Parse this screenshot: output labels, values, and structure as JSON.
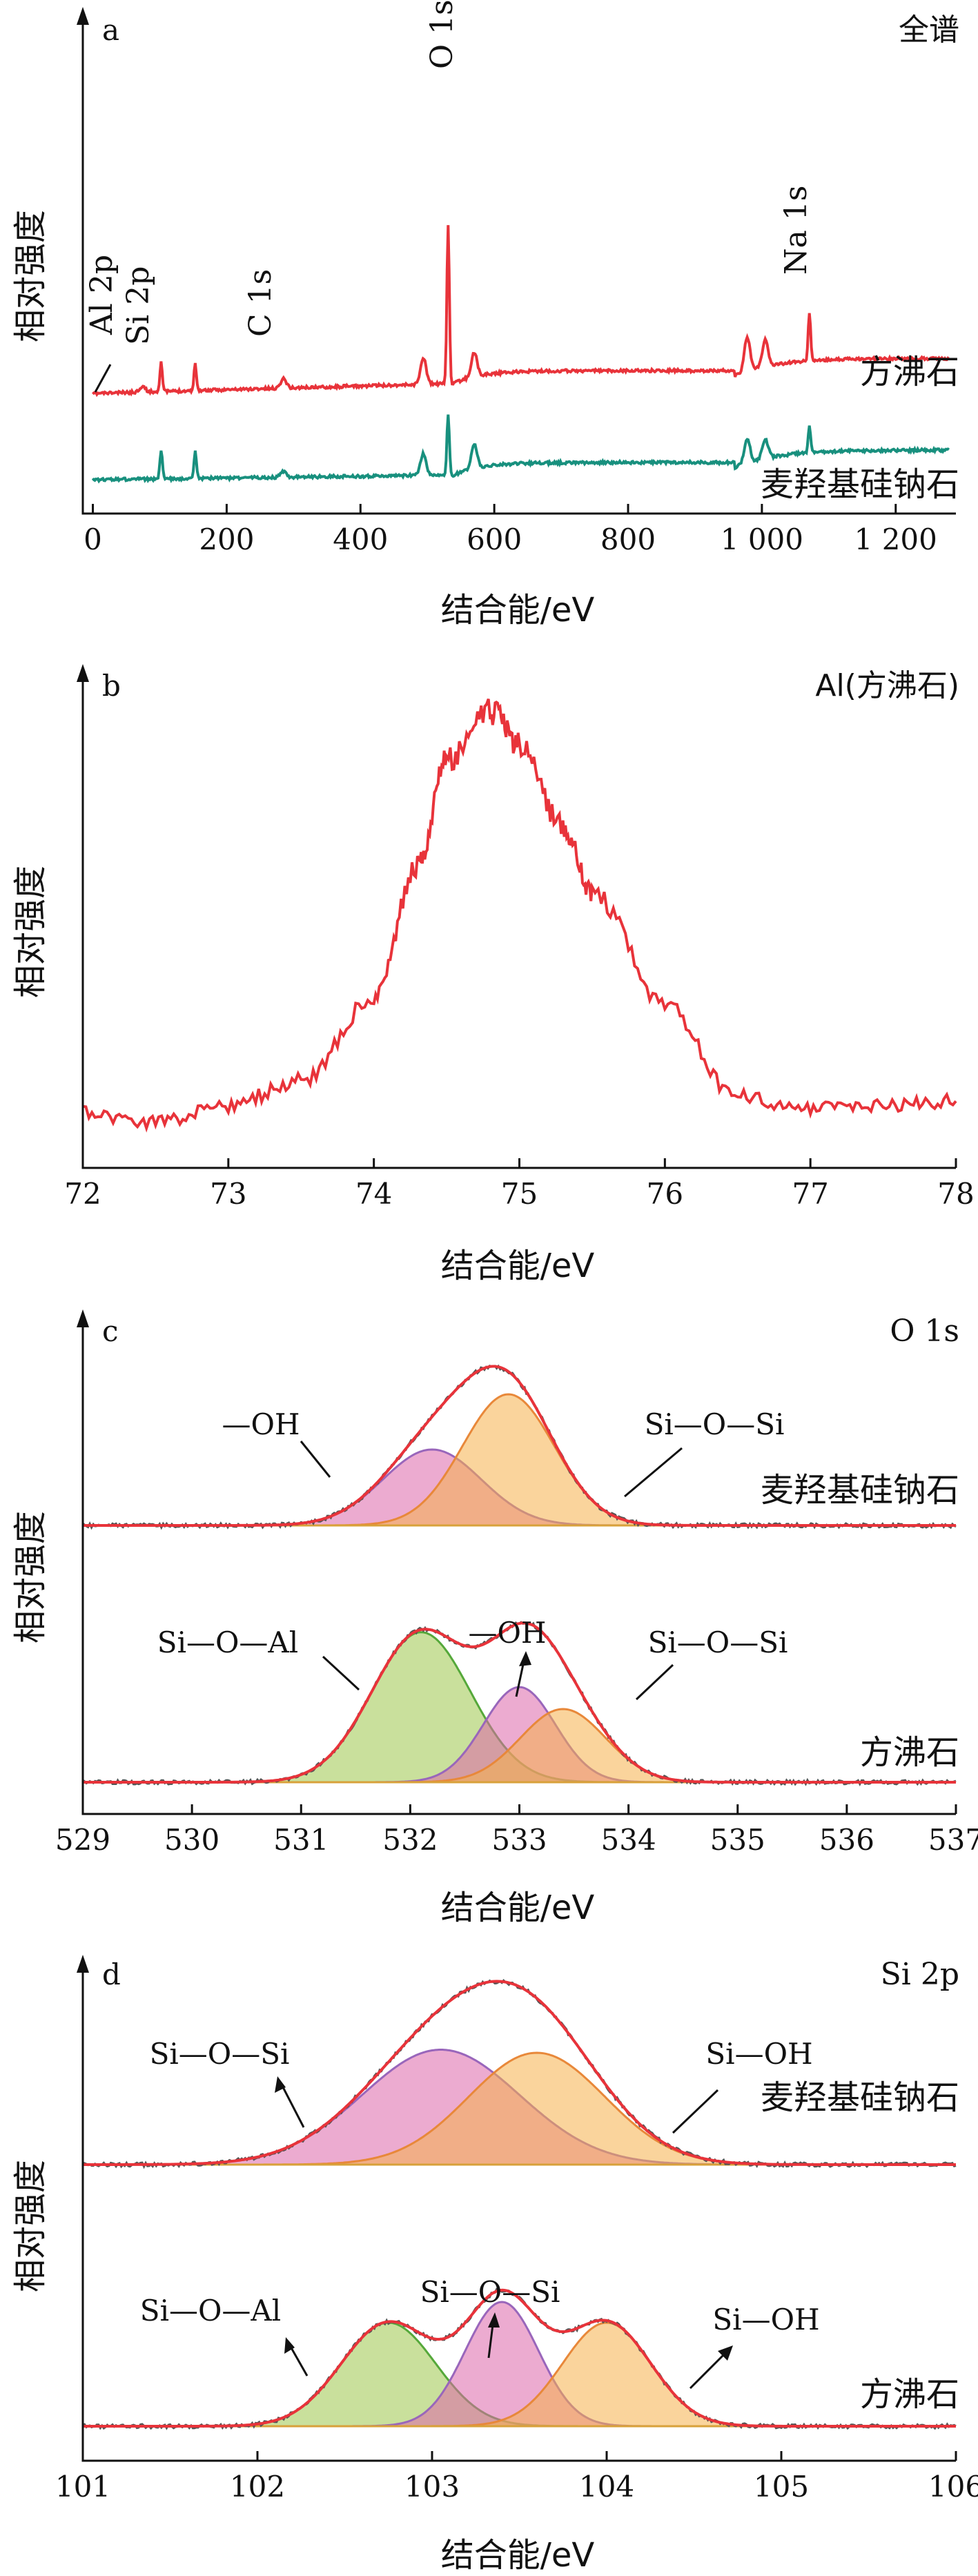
{
  "chart_data": [
    {
      "type": "line",
      "panel_letter": "a",
      "title": "全谱",
      "ylabel": "相对强度",
      "xlabel": "结合能/eV",
      "xlim": [
        0,
        1300
      ],
      "x_ticks": [
        "0",
        "200",
        "400",
        "600",
        "800",
        "1 000",
        "1 200"
      ],
      "x_tick_values": [
        0,
        200,
        400,
        600,
        800,
        1000,
        1200
      ],
      "annotations": [
        "Al 2p",
        "Si 2p",
        "C 1s",
        "O 1s",
        "Na 1s"
      ],
      "annotation_x": [
        74,
        102,
        285,
        531,
        1071
      ],
      "series": [
        {
          "name": "方沸石",
          "color": "#e8333a",
          "peaks": [
            [
              74,
              0.12
            ],
            [
              102,
              0.62
            ],
            [
              153,
              0.55
            ],
            [
              285,
              0.2
            ],
            [
              494,
              0.55
            ],
            [
              531,
              3.3
            ],
            [
              570,
              0.5
            ],
            [
              978,
              0.7
            ],
            [
              1005,
              0.55
            ],
            [
              1071,
              1.0
            ]
          ]
        },
        {
          "name": "麦羟基硅钠石",
          "color": "#18907e",
          "peaks": [
            [
              102,
              0.6
            ],
            [
              153,
              0.55
            ],
            [
              285,
              0.12
            ],
            [
              494,
              0.45
            ],
            [
              531,
              1.25
            ],
            [
              570,
              0.5
            ],
            [
              978,
              0.5
            ],
            [
              1005,
              0.4
            ],
            [
              1071,
              0.55
            ]
          ]
        }
      ]
    },
    {
      "type": "line",
      "panel_letter": "b",
      "title": "Al(方沸石)",
      "ylabel": "相对强度",
      "xlabel": "结合能/eV",
      "xlim": [
        72,
        78
      ],
      "x_ticks": [
        "72",
        "73",
        "74",
        "75",
        "76",
        "77",
        "78"
      ],
      "x_tick_values": [
        72,
        73,
        74,
        75,
        76,
        77,
        78
      ],
      "series": [
        {
          "color": "#e8333a",
          "x": [
            72.0,
            72.5,
            73.0,
            73.5,
            74.0,
            74.3,
            74.5,
            74.8,
            75.0,
            75.3,
            75.5,
            76.0,
            76.5,
            77.0,
            77.5,
            78.0
          ],
          "y": [
            0.02,
            0.0,
            0.04,
            0.1,
            0.3,
            0.62,
            0.88,
            1.0,
            0.92,
            0.72,
            0.56,
            0.28,
            0.06,
            0.03,
            0.04,
            0.05
          ]
        }
      ]
    },
    {
      "type": "area",
      "panel_letter": "c",
      "title": "O 1s",
      "ylabel": "相对强度",
      "xlabel": "结合能/eV",
      "xlim": [
        529,
        537
      ],
      "x_ticks": [
        "529",
        "530",
        "531",
        "532",
        "533",
        "534",
        "535",
        "536",
        "537"
      ],
      "x_tick_values": [
        529,
        530,
        531,
        532,
        533,
        534,
        535,
        536,
        537
      ],
      "subplots": [
        {
          "sample": "麦羟基硅钠石",
          "components": [
            {
              "name": "—OH",
              "center": 532.2,
              "height": 0.55,
              "width": 0.75,
              "fill": "#dd66aa",
              "stroke": "#9966bb"
            },
            {
              "name": "Si—O—Si",
              "center": 532.9,
              "height": 0.95,
              "width": 0.7,
              "fill": "#f5b04a",
              "stroke": "#e8883a"
            }
          ]
        },
        {
          "sample": "方沸石",
          "components": [
            {
              "name": "Si—O—Al",
              "center": 532.1,
              "height": 0.82,
              "width": 0.75,
              "fill": "#9cc64a",
              "stroke": "#55a83a"
            },
            {
              "name": "—OH",
              "center": 533.0,
              "height": 0.52,
              "width": 0.55,
              "fill": "#dd66aa",
              "stroke": "#9966bb"
            },
            {
              "name": "Si—O—Si",
              "center": 533.4,
              "height": 0.4,
              "width": 0.65,
              "fill": "#f5b04a",
              "stroke": "#e8883a"
            }
          ]
        }
      ]
    },
    {
      "type": "area",
      "panel_letter": "d",
      "title": "Si 2p",
      "ylabel": "相对强度",
      "xlabel": "结合能/eV",
      "xlim": [
        101,
        106
      ],
      "x_ticks": [
        "101",
        "102",
        "103",
        "104",
        "105",
        "106"
      ],
      "x_tick_values": [
        101,
        102,
        103,
        104,
        105,
        106
      ],
      "subplots": [
        {
          "sample": "麦羟基硅钠石",
          "components": [
            {
              "name": "Si—O—Si",
              "center": 103.05,
              "height": 0.74,
              "width": 0.75,
              "fill": "#dd66aa",
              "stroke": "#9966bb"
            },
            {
              "name": "Si—OH",
              "center": 103.6,
              "height": 0.72,
              "width": 0.65,
              "fill": "#f5b04a",
              "stroke": "#e8883a"
            }
          ]
        },
        {
          "sample": "方沸石",
          "components": [
            {
              "name": "Si—O—Al",
              "center": 102.75,
              "height": 0.6,
              "width": 0.45,
              "fill": "#9cc64a",
              "stroke": "#55a83a"
            },
            {
              "name": "Si—O—Si",
              "center": 103.4,
              "height": 0.72,
              "width": 0.35,
              "fill": "#dd66aa",
              "stroke": "#9966bb"
            },
            {
              "name": "Si—OH",
              "center": 104.0,
              "height": 0.6,
              "width": 0.42,
              "fill": "#f5b04a",
              "stroke": "#e8883a"
            }
          ]
        }
      ]
    }
  ],
  "colors": {
    "envelope": "#e8333a",
    "measured": "#555555",
    "axis": "#111111"
  }
}
